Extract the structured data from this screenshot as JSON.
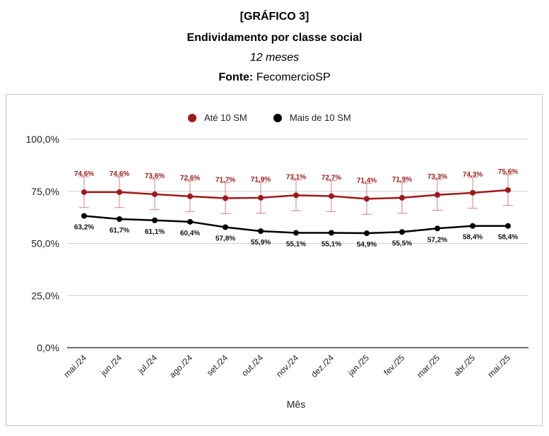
{
  "header": {
    "line1": "[GRÁFICO 3]",
    "line2": "Endividamento por classe social",
    "line3": "12 meses",
    "source_label": "Fonte:",
    "source_value": "FecomercioSP"
  },
  "colors": {
    "series1": "#9e1a1a",
    "series2": "#000000",
    "grid": "#d0d0d0",
    "axis": "#444444"
  },
  "chart_data": {
    "type": "line",
    "title": "Endividamento por classe social",
    "subtitle": "12 meses",
    "xlabel": "Mês",
    "ylabel": "",
    "ylim": [
      0,
      100
    ],
    "yticks": [
      0,
      25,
      50,
      75,
      100
    ],
    "ytick_labels": [
      "0,0%",
      "25,0%",
      "50,0%",
      "75,0%",
      "100,0%"
    ],
    "categories": [
      "mai./24",
      "jun./24",
      "jul./24",
      "ago./24",
      "set./24",
      "out./24",
      "nov./24",
      "dez./24",
      "jan./25",
      "fev./25",
      "mar./25",
      "abr./25",
      "mai./25"
    ],
    "legend_position": "top",
    "grid": true,
    "series": [
      {
        "name": "Até 10 SM",
        "values": [
          74.6,
          74.6,
          73.6,
          72.6,
          71.7,
          71.9,
          73.1,
          72.7,
          71.4,
          71.9,
          73.3,
          74.3,
          75.6
        ],
        "labels": [
          "74,6%",
          "74,6%",
          "73,6%",
          "72,6%",
          "71,7%",
          "71,9%",
          "73,1%",
          "72,7%",
          "71,4%",
          "71,9%",
          "73,3%",
          "74,3%",
          "75,6%"
        ],
        "error_bars": {
          "minus": 7.4,
          "plus": 7.4
        }
      },
      {
        "name": "Mais de 10 SM",
        "values": [
          63.2,
          61.7,
          61.1,
          60.4,
          57.8,
          55.9,
          55.1,
          55.1,
          54.9,
          55.5,
          57.2,
          58.4,
          58.4
        ],
        "labels": [
          "63,2%",
          "61,7%",
          "61,1%",
          "60,4%",
          "57,8%",
          "55,9%",
          "55,1%",
          "55,1%",
          "54,9%",
          "55,5%",
          "57,2%",
          "58,4%",
          "58,4%"
        ]
      }
    ]
  }
}
